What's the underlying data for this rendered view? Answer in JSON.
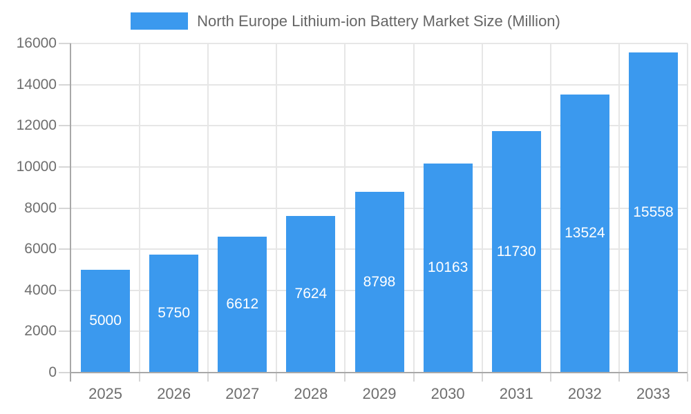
{
  "chart_data": {
    "type": "bar",
    "title": "North Europe Lithium-ion Battery Market Size (Million)",
    "categories": [
      "2025",
      "2026",
      "2027",
      "2028",
      "2029",
      "2030",
      "2031",
      "2032",
      "2033"
    ],
    "values": [
      5000,
      5750,
      6612,
      7624,
      8798,
      10163,
      11730,
      13524,
      15558
    ],
    "xlabel": "",
    "ylabel": "",
    "ylim": [
      0,
      16000
    ],
    "ytick_step": 2000,
    "grid": true,
    "legend_position": "top",
    "bar_color": "#3b99ee",
    "bar_label_color": "#ffffff",
    "grid_color": "#e6e6e6",
    "tick_color": "#d6d6d6",
    "axis_color": "#a8a8a8",
    "tick_text_color": "#6e6e6e",
    "legend_text_color": "#666666"
  }
}
